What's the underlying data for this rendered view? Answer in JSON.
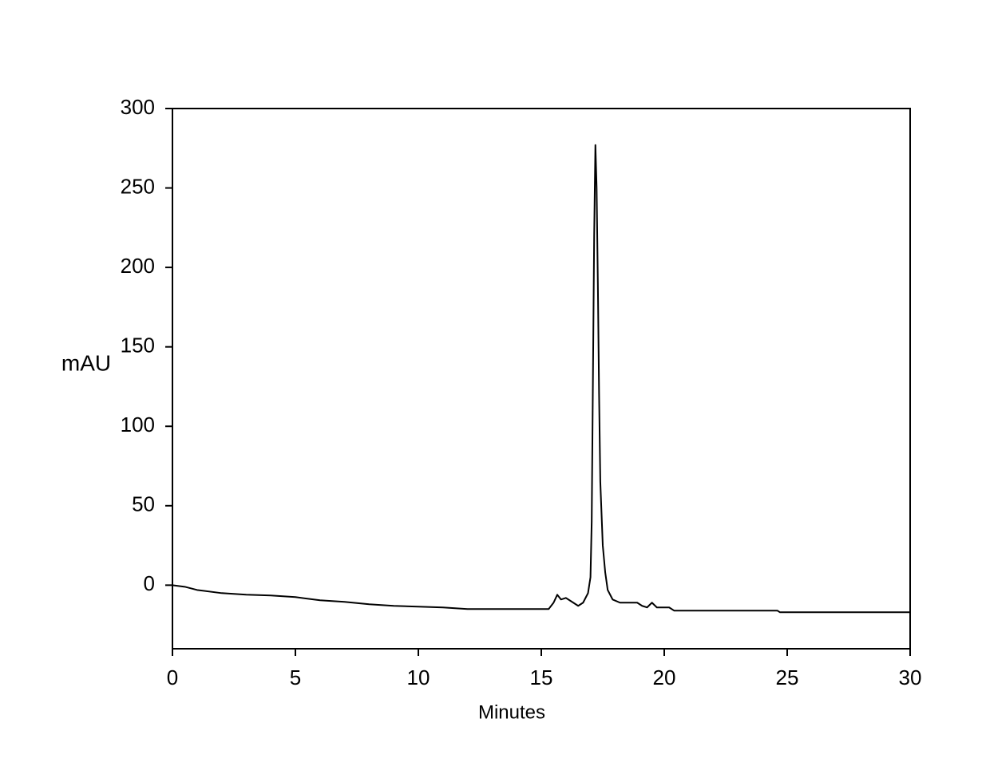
{
  "chart_data": {
    "type": "line",
    "x_label": "Minutes",
    "y_label": "mAU",
    "x": [
      0,
      0.5,
      1,
      2,
      3,
      4,
      5,
      6,
      7,
      8,
      9,
      10,
      11,
      12,
      13,
      14,
      15,
      15.3,
      15.5,
      15.65,
      15.8,
      16.0,
      16.2,
      16.5,
      16.7,
      16.9,
      17.0,
      17.05,
      17.1,
      17.15,
      17.2,
      17.25,
      17.3,
      17.35,
      17.4,
      17.5,
      17.6,
      17.7,
      17.9,
      18.2,
      18.5,
      18.9,
      19.1,
      19.3,
      19.5,
      19.7,
      20.0,
      20.2,
      20.4,
      22,
      24.6,
      24.7,
      27,
      30
    ],
    "values": [
      0,
      -1,
      -3,
      -5,
      -6,
      -6.5,
      -7.5,
      -9.5,
      -10.5,
      -12,
      -13,
      -13.5,
      -14,
      -15,
      -15,
      -15,
      -15,
      -15,
      -11,
      -6,
      -9,
      -8,
      -10,
      -13,
      -11,
      -5,
      5,
      40,
      130,
      220,
      277,
      250,
      190,
      120,
      65,
      25,
      8,
      -3,
      -9,
      -11,
      -11,
      -11,
      -13,
      -14,
      -11,
      -14,
      -14,
      -14,
      -16,
      -16,
      -16,
      -17,
      -17,
      -17
    ],
    "color": "#000000",
    "xlim": [
      0,
      30
    ],
    "xticks": [
      0,
      5,
      10,
      15,
      20,
      25,
      30
    ],
    "ylim": [
      -40,
      300
    ],
    "yticks": [
      0,
      50,
      100,
      150,
      200,
      250,
      300
    ],
    "grid": false
  }
}
